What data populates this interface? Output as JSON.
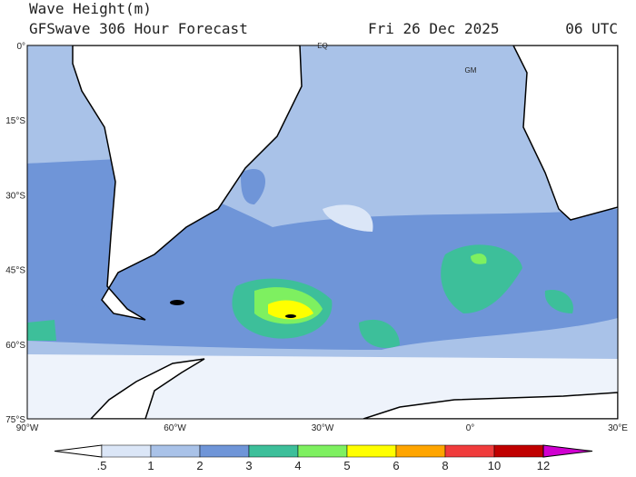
{
  "header": {
    "title": "Wave Height(m)",
    "subtitle": "GFSwave 306 Hour Forecast",
    "date": "Fri 26 Dec 2025",
    "time": "06 UTC"
  },
  "map": {
    "lat_labels": [
      "0°",
      "15°S",
      "30°S",
      "45°S",
      "60°S",
      "75°S"
    ],
    "lon_labels": [
      "90°W",
      "60°W",
      "30°W",
      "0°",
      "30°E"
    ],
    "annotations": [
      "EQ",
      "GM"
    ]
  },
  "colorbar": {
    "labels": [
      ".5",
      "1",
      "2",
      "3",
      "4",
      "5",
      "6",
      "8",
      "10",
      "12"
    ]
  }
}
